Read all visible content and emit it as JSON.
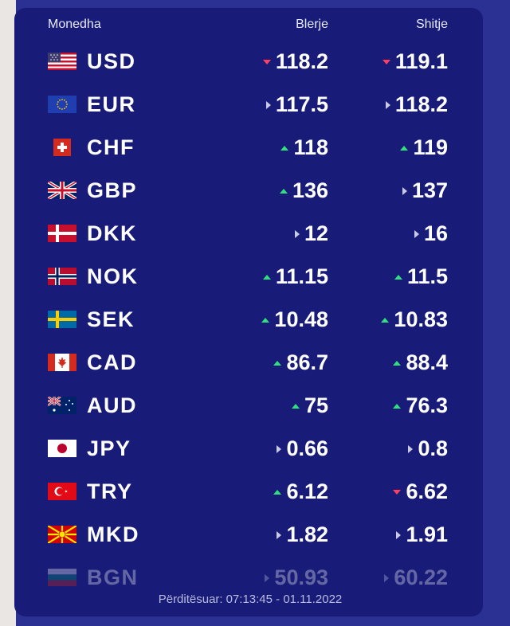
{
  "header": {
    "currency": "Monedha",
    "buy": "Blerje",
    "sell": "Shitje"
  },
  "rates": [
    {
      "code": "USD",
      "flag": "us-flag-icon",
      "buy": "118.2",
      "buy_trend": "down",
      "sell": "119.1",
      "sell_trend": "down"
    },
    {
      "code": "EUR",
      "flag": "eu-flag-icon",
      "buy": "117.5",
      "buy_trend": "flat",
      "sell": "118.2",
      "sell_trend": "flat"
    },
    {
      "code": "CHF",
      "flag": "ch-flag-icon",
      "buy": "118",
      "buy_trend": "up",
      "sell": "119",
      "sell_trend": "up"
    },
    {
      "code": "GBP",
      "flag": "gb-flag-icon",
      "buy": "136",
      "buy_trend": "up",
      "sell": "137",
      "sell_trend": "flat"
    },
    {
      "code": "DKK",
      "flag": "dk-flag-icon",
      "buy": "12",
      "buy_trend": "flat",
      "sell": "16",
      "sell_trend": "flat"
    },
    {
      "code": "NOK",
      "flag": "no-flag-icon",
      "buy": "11.15",
      "buy_trend": "up",
      "sell": "11.5",
      "sell_trend": "up"
    },
    {
      "code": "SEK",
      "flag": "se-flag-icon",
      "buy": "10.48",
      "buy_trend": "up",
      "sell": "10.83",
      "sell_trend": "up"
    },
    {
      "code": "CAD",
      "flag": "ca-flag-icon",
      "buy": "86.7",
      "buy_trend": "up",
      "sell": "88.4",
      "sell_trend": "up"
    },
    {
      "code": "AUD",
      "flag": "au-flag-icon",
      "buy": "75",
      "buy_trend": "up",
      "sell": "76.3",
      "sell_trend": "up"
    },
    {
      "code": "JPY",
      "flag": "jp-flag-icon",
      "buy": "0.66",
      "buy_trend": "flat",
      "sell": "0.8",
      "sell_trend": "flat"
    },
    {
      "code": "TRY",
      "flag": "tr-flag-icon",
      "buy": "6.12",
      "buy_trend": "up",
      "sell": "6.62",
      "sell_trend": "down"
    },
    {
      "code": "MKD",
      "flag": "mk-flag-icon",
      "buy": "1.82",
      "buy_trend": "flat",
      "sell": "1.91",
      "sell_trend": "flat"
    },
    {
      "code": "BGN",
      "flag": "bg-flag-icon",
      "buy": "50.93",
      "buy_trend": "flat",
      "sell": "60.22",
      "sell_trend": "flat"
    }
  ],
  "footer": {
    "label": "Përditësuar:",
    "timestamp": "07:13:45 - 01.11.2022"
  },
  "colors": {
    "page_bg": "#2a3192",
    "card_bg": "#181c78",
    "up": "#2fe07d",
    "down": "#ff3f5e",
    "flat": "#c9cbe4"
  }
}
